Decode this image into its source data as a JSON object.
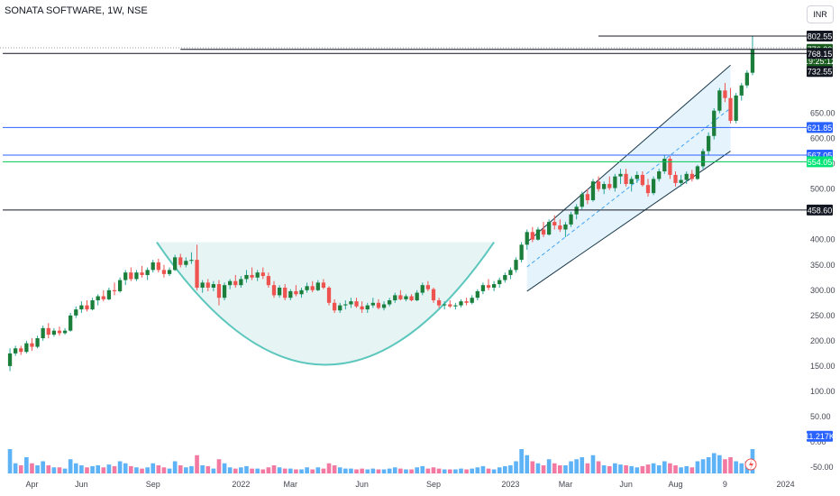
{
  "header": {
    "title": "SONATA SOFTWARE, 1W, NSE",
    "currency": "INR"
  },
  "colors": {
    "up": "#26a69a",
    "up_dark": "#1b5e20",
    "down": "#ef5350",
    "vol_up": "#42a5f5",
    "vol_down": "#f06292",
    "cup": "#5cc7bd",
    "cup_fill": "#e6f4f4",
    "channel": "#1b3a4b",
    "blue_line": "#2962ff",
    "green_line": "#00c853"
  },
  "chart_data": {
    "type": "candlestick",
    "title": "SONATA SOFTWARE, 1W, NSE",
    "y_axis": {
      "ticks": [
        -50,
        0,
        50,
        100,
        150,
        200,
        250,
        300,
        350,
        400,
        500,
        550,
        600,
        650
      ],
      "tick_labels": [
        "-50.00",
        "0.00",
        "50.00",
        "100.00",
        "150.00",
        "200.00",
        "250.00",
        "300.00",
        "350.00",
        "400.00",
        "500.00",
        "550.00",
        "600.00",
        "650.00"
      ],
      "range": [
        -60,
        820
      ]
    },
    "x_axis": {
      "labels": [
        "Apr",
        "Jun",
        "Sep",
        "2022",
        "Mar",
        "Jun",
        "Sep",
        "2023",
        "Mar",
        "Jun",
        "Aug",
        "9",
        "2024"
      ],
      "label_weeks": [
        4,
        13,
        26,
        42,
        51,
        64,
        77,
        91,
        101,
        112,
        121,
        130,
        141
      ]
    },
    "price_labels": [
      {
        "value": 802.55,
        "text": "802.55",
        "bg": "#131722",
        "fg": "#ffffff"
      },
      {
        "value": 776.3,
        "text": "776.30",
        "bg": "#1b5e20",
        "fg": "#ffffff"
      },
      {
        "value": 776.3,
        "text": "19:25:12",
        "bg": "#1b5e20",
        "fg": "#ffffff",
        "offset": 1
      },
      {
        "value": 768.15,
        "text": "768.15",
        "bg": "#131722",
        "fg": "#ffffff"
      },
      {
        "value": 732.55,
        "text": "732.55",
        "bg": "#131722",
        "fg": "#ffffff"
      },
      {
        "value": 621.85,
        "text": "621.85",
        "bg": "#2962ff",
        "fg": "#ffffff"
      },
      {
        "value": 567.05,
        "text": "567.05",
        "bg": "#2962ff",
        "fg": "#ffffff"
      },
      {
        "value": 554.05,
        "text": "554.05",
        "bg": "#00e676",
        "fg": "#ffffff"
      },
      {
        "value": 458.6,
        "text": "458.60",
        "bg": "#131722",
        "fg": "#ffffff"
      },
      {
        "value": 11.217,
        "text": "11.217K",
        "bg": "#2962ff",
        "fg": "#ffffff"
      }
    ],
    "horizontal_lines": [
      {
        "value": 802.55,
        "color": "#131722",
        "from_week": 107
      },
      {
        "value": 776.3,
        "color": "#131722",
        "from_week": 31
      },
      {
        "value": 768.15,
        "color": "#131722",
        "from_week": 0
      },
      {
        "value": 621.85,
        "color": "#2962ff",
        "from_week": 0
      },
      {
        "value": 567.05,
        "color": "#2962ff",
        "from_week": 0
      },
      {
        "value": 554.05,
        "color": "#00c853",
        "from_week": 0
      },
      {
        "value": 458.6,
        "color": "#131722",
        "from_week": 0
      }
    ],
    "candles": [
      [
        150,
        185,
        140,
        175,
        60
      ],
      [
        175,
        190,
        170,
        185,
        25
      ],
      [
        185,
        190,
        172,
        178,
        20
      ],
      [
        178,
        200,
        175,
        195,
        40
      ],
      [
        195,
        205,
        180,
        188,
        25
      ],
      [
        188,
        210,
        185,
        205,
        20
      ],
      [
        205,
        230,
        200,
        225,
        30
      ],
      [
        225,
        235,
        205,
        212,
        20
      ],
      [
        212,
        225,
        208,
        220,
        15
      ],
      [
        220,
        228,
        210,
        215,
        15
      ],
      [
        215,
        225,
        212,
        220,
        12
      ],
      [
        220,
        255,
        218,
        250,
        35
      ],
      [
        250,
        268,
        245,
        262,
        25
      ],
      [
        262,
        278,
        255,
        270,
        20
      ],
      [
        270,
        280,
        258,
        262,
        15
      ],
      [
        262,
        285,
        260,
        280,
        18
      ],
      [
        280,
        292,
        270,
        288,
        20
      ],
      [
        288,
        300,
        278,
        282,
        15
      ],
      [
        282,
        305,
        280,
        300,
        22
      ],
      [
        300,
        315,
        290,
        298,
        18
      ],
      [
        298,
        325,
        295,
        320,
        30
      ],
      [
        320,
        340,
        310,
        335,
        25
      ],
      [
        335,
        345,
        318,
        322,
        18
      ],
      [
        322,
        340,
        318,
        335,
        15
      ],
      [
        335,
        348,
        325,
        330,
        12
      ],
      [
        330,
        345,
        320,
        340,
        15
      ],
      [
        340,
        360,
        335,
        355,
        25
      ],
      [
        355,
        362,
        335,
        340,
        20
      ],
      [
        340,
        350,
        325,
        332,
        15
      ],
      [
        332,
        345,
        328,
        340,
        12
      ],
      [
        340,
        370,
        338,
        365,
        30
      ],
      [
        365,
        372,
        345,
        350,
        20
      ],
      [
        350,
        365,
        345,
        358,
        15
      ],
      [
        358,
        375,
        352,
        360,
        18
      ],
      [
        360,
        390,
        300,
        305,
        45
      ],
      [
        305,
        320,
        295,
        315,
        20
      ],
      [
        315,
        322,
        298,
        305,
        18
      ],
      [
        305,
        318,
        298,
        312,
        12
      ],
      [
        312,
        320,
        270,
        285,
        35
      ],
      [
        285,
        315,
        280,
        310,
        25
      ],
      [
        310,
        322,
        302,
        318,
        15
      ],
      [
        318,
        330,
        305,
        310,
        12
      ],
      [
        310,
        328,
        305,
        322,
        15
      ],
      [
        322,
        340,
        315,
        330,
        18
      ],
      [
        330,
        345,
        320,
        325,
        12
      ],
      [
        325,
        340,
        318,
        335,
        12
      ],
      [
        335,
        345,
        322,
        328,
        10
      ],
      [
        328,
        335,
        305,
        310,
        15
      ],
      [
        310,
        318,
        285,
        290,
        20
      ],
      [
        290,
        310,
        285,
        305,
        15
      ],
      [
        305,
        312,
        280,
        285,
        12
      ],
      [
        285,
        302,
        280,
        298,
        12
      ],
      [
        298,
        310,
        288,
        292,
        10
      ],
      [
        292,
        305,
        285,
        300,
        10
      ],
      [
        300,
        315,
        295,
        308,
        15
      ],
      [
        308,
        318,
        296,
        300,
        10
      ],
      [
        300,
        320,
        298,
        315,
        15
      ],
      [
        315,
        322,
        302,
        305,
        12
      ],
      [
        305,
        308,
        270,
        275,
        25
      ],
      [
        275,
        282,
        255,
        260,
        20
      ],
      [
        260,
        275,
        255,
        270,
        15
      ],
      [
        270,
        280,
        262,
        272,
        12
      ],
      [
        272,
        285,
        265,
        278,
        12
      ],
      [
        278,
        285,
        265,
        268,
        10
      ],
      [
        268,
        278,
        255,
        262,
        12
      ],
      [
        262,
        275,
        255,
        270,
        10
      ],
      [
        270,
        285,
        265,
        275,
        12
      ],
      [
        275,
        282,
        262,
        265,
        10
      ],
      [
        265,
        278,
        260,
        272,
        10
      ],
      [
        272,
        285,
        268,
        280,
        12
      ],
      [
        280,
        295,
        275,
        290,
        15
      ],
      [
        290,
        300,
        280,
        282,
        12
      ],
      [
        282,
        292,
        278,
        288,
        10
      ],
      [
        288,
        292,
        278,
        280,
        10
      ],
      [
        280,
        300,
        278,
        295,
        15
      ],
      [
        295,
        315,
        290,
        310,
        18
      ],
      [
        310,
        318,
        298,
        302,
        12
      ],
      [
        302,
        305,
        275,
        280,
        15
      ],
      [
        280,
        285,
        265,
        270,
        12
      ],
      [
        270,
        278,
        262,
        272,
        10
      ],
      [
        272,
        280,
        265,
        268,
        10
      ],
      [
        268,
        275,
        262,
        270,
        10
      ],
      [
        270,
        282,
        266,
        278,
        12
      ],
      [
        278,
        285,
        270,
        275,
        10
      ],
      [
        275,
        290,
        272,
        285,
        12
      ],
      [
        285,
        302,
        280,
        298,
        15
      ],
      [
        298,
        315,
        292,
        310,
        18
      ],
      [
        310,
        322,
        300,
        305,
        12
      ],
      [
        305,
        318,
        298,
        312,
        10
      ],
      [
        312,
        325,
        305,
        320,
        15
      ],
      [
        320,
        335,
        315,
        330,
        18
      ],
      [
        330,
        345,
        322,
        340,
        20
      ],
      [
        340,
        365,
        335,
        360,
        30
      ],
      [
        360,
        395,
        355,
        390,
        60
      ],
      [
        390,
        420,
        380,
        415,
        45
      ],
      [
        415,
        425,
        395,
        400,
        30
      ],
      [
        400,
        425,
        398,
        420,
        25
      ],
      [
        420,
        435,
        405,
        410,
        20
      ],
      [
        410,
        440,
        408,
        435,
        35
      ],
      [
        435,
        448,
        420,
        428,
        25
      ],
      [
        428,
        440,
        415,
        420,
        20
      ],
      [
        420,
        435,
        405,
        430,
        20
      ],
      [
        430,
        455,
        425,
        450,
        30
      ],
      [
        450,
        470,
        440,
        465,
        35
      ],
      [
        465,
        495,
        460,
        490,
        40
      ],
      [
        490,
        500,
        470,
        478,
        25
      ],
      [
        478,
        520,
        475,
        515,
        45
      ],
      [
        515,
        525,
        495,
        500,
        30
      ],
      [
        500,
        515,
        490,
        510,
        20
      ],
      [
        510,
        525,
        498,
        502,
        18
      ],
      [
        502,
        530,
        495,
        525,
        25
      ],
      [
        525,
        540,
        510,
        530,
        22
      ],
      [
        530,
        540,
        505,
        510,
        20
      ],
      [
        510,
        525,
        495,
        520,
        18
      ],
      [
        520,
        535,
        512,
        528,
        15
      ],
      [
        528,
        535,
        505,
        508,
        18
      ],
      [
        508,
        520,
        485,
        492,
        22
      ],
      [
        492,
        525,
        488,
        520,
        25
      ],
      [
        520,
        540,
        515,
        535,
        20
      ],
      [
        535,
        568,
        530,
        560,
        30
      ],
      [
        560,
        565,
        520,
        528,
        25
      ],
      [
        528,
        535,
        505,
        512,
        20
      ],
      [
        512,
        528,
        505,
        518,
        15
      ],
      [
        518,
        535,
        510,
        530,
        18
      ],
      [
        530,
        538,
        515,
        520,
        15
      ],
      [
        520,
        548,
        518,
        545,
        30
      ],
      [
        545,
        580,
        540,
        575,
        35
      ],
      [
        575,
        612,
        568,
        605,
        40
      ],
      [
        605,
        660,
        598,
        655,
        50
      ],
      [
        655,
        700,
        650,
        695,
        45
      ],
      [
        695,
        710,
        672,
        680,
        35
      ],
      [
        680,
        700,
        630,
        635,
        40
      ],
      [
        635,
        690,
        630,
        685,
        30
      ],
      [
        685,
        710,
        675,
        705,
        25
      ],
      [
        705,
        735,
        700,
        730,
        30
      ],
      [
        730,
        802.55,
        725,
        776.3,
        60
      ]
    ]
  }
}
